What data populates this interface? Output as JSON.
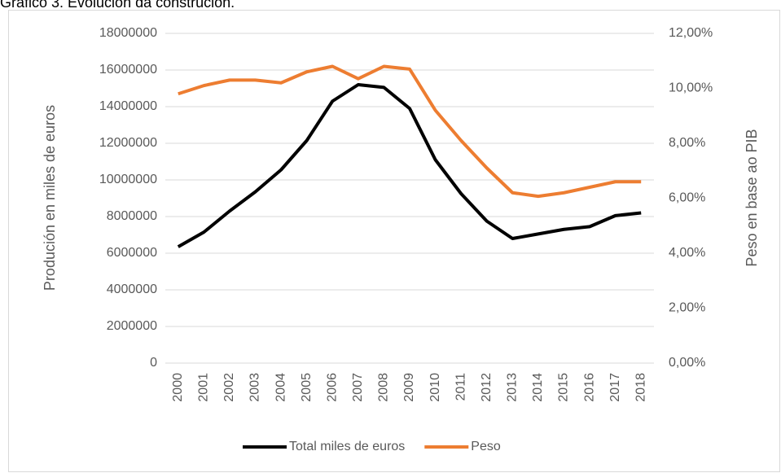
{
  "chart_data": {
    "type": "line",
    "title": "Gráfico 3. Evolución da construción.",
    "y_label": "Produción en miles de euros",
    "y2_label": "Peso en base ao PIB",
    "categories": [
      "2000",
      "2001",
      "2002",
      "2003",
      "2004",
      "2005",
      "2006",
      "2007",
      "2008",
      "2009",
      "2010",
      "2011",
      "2012",
      "2013",
      "2014",
      "2015",
      "2016",
      "2017",
      "2018"
    ],
    "series": [
      {
        "name": "Total miles de euros",
        "color": "#000000",
        "values": [
          6350000,
          7150000,
          8300000,
          9350000,
          10550000,
          12150000,
          14300000,
          15200000,
          15050000,
          13900000,
          11100000,
          9250000,
          7750000,
          6800000,
          7050000,
          7300000,
          7450000,
          8050000,
          8200000
        ]
      },
      {
        "name": "Peso",
        "color": "#ed7d31",
        "axis": "y2",
        "values": [
          9.8,
          10.1,
          10.3,
          10.3,
          10.2,
          10.6,
          10.8,
          10.35,
          10.8,
          10.7,
          9.2,
          8.1,
          7.1,
          6.2,
          6.07,
          6.2,
          6.4,
          6.6,
          6.6
        ]
      }
    ],
    "ylim": [
      0,
      18000000
    ],
    "yticks": [
      0,
      2000000,
      4000000,
      6000000,
      8000000,
      10000000,
      12000000,
      14000000,
      16000000,
      18000000
    ],
    "y2lim": [
      0,
      12
    ],
    "y2ticks": [
      {
        "value": 0,
        "label": "0,00%"
      },
      {
        "value": 2,
        "label": "2,00%"
      },
      {
        "value": 4,
        "label": "4,00%"
      },
      {
        "value": 6,
        "label": "6,00%"
      },
      {
        "value": 8,
        "label": "8,00%"
      },
      {
        "value": 10,
        "label": "10,00%"
      },
      {
        "value": 12,
        "label": "12,00%"
      }
    ],
    "grid": true,
    "legend": "bottom"
  }
}
